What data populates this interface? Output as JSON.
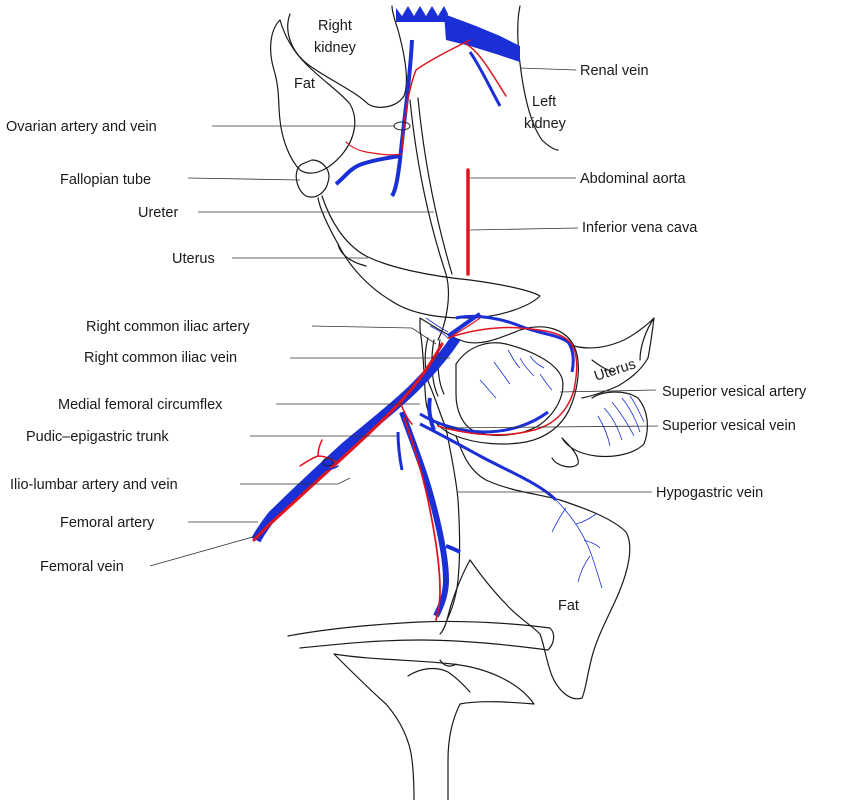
{
  "colors": {
    "vein": "#1a2fd6",
    "artery": "#e0141e",
    "outline": "#1a1a1a"
  },
  "labels": {
    "right_kidney_line1": "Right",
    "right_kidney_line2": "kidney",
    "fat_top": "Fat",
    "left_kidney_line1": "Left",
    "left_kidney_line2": "kidney",
    "renal_vein": "Renal vein",
    "ovarian_artery_vein": "Ovarian artery and vein",
    "fallopian_tube": "Fallopian tube",
    "abdominal_aorta": "Abdominal aorta",
    "ureter": "Ureter",
    "inferior_vena_cava": "Inferior vena cava",
    "uterus_left": "Uterus",
    "right_common_iliac_artery": "Right common iliac artery",
    "right_common_iliac_vein": "Right common iliac vein",
    "uterus_right": "Uterus",
    "superior_vesical_artery": "Superior vesical artery",
    "medial_femoral_circumflex": "Medial femoral circumflex",
    "superior_vesical_vein": "Superior vesical vein",
    "pudic_epigastric_trunk": "Pudic–epigastric trunk",
    "ilio_lumbar_artery_vein": "Ilio-lumbar artery and vein",
    "hypogastric_vein": "Hypogastric vein",
    "femoral_artery": "Femoral artery",
    "femoral_vein": "Femoral vein",
    "fat_bottom": "Fat"
  }
}
